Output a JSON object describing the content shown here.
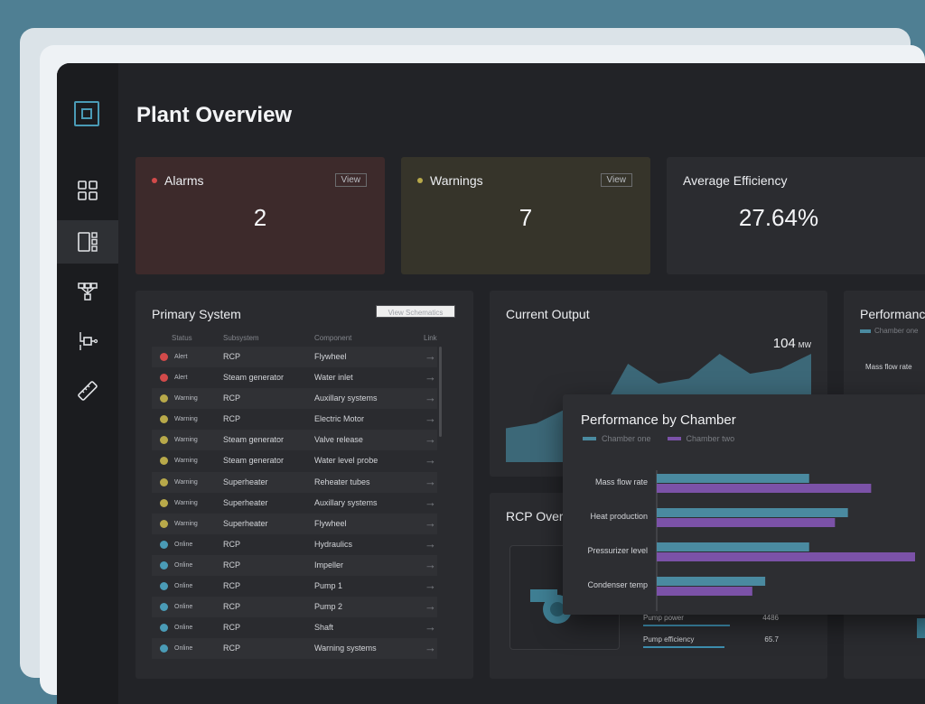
{
  "page": {
    "title": "Plant Overview"
  },
  "sidebar": {
    "items": [
      {
        "name": "dashboard-icon"
      },
      {
        "name": "layout-icon",
        "active": true
      },
      {
        "name": "network-icon"
      },
      {
        "name": "component-icon"
      },
      {
        "name": "ruler-icon"
      }
    ]
  },
  "cards": {
    "alarms": {
      "label": "Alarms",
      "value": "2",
      "view": "View",
      "dot_color": "#d24a4a"
    },
    "warnings": {
      "label": "Warnings",
      "value": "7",
      "view": "View",
      "dot_color": "#b8a94a"
    },
    "efficiency": {
      "label": "Average Efficiency",
      "value": "27.64%"
    }
  },
  "primary": {
    "title": "Primary System",
    "schematics_button": "View Schematics",
    "headers": {
      "status": "Status",
      "subsystem": "Subsystem",
      "component": "Component",
      "link": "Link"
    },
    "rows": [
      {
        "status": "Alert",
        "color": "#d24a4a",
        "subsystem": "RCP",
        "component": "Flywheel"
      },
      {
        "status": "Alert",
        "color": "#d24a4a",
        "subsystem": "Steam generator",
        "component": "Water inlet"
      },
      {
        "status": "Warning",
        "color": "#b8a94a",
        "subsystem": "RCP",
        "component": "Auxillary systems"
      },
      {
        "status": "Warning",
        "color": "#b8a94a",
        "subsystem": "RCP",
        "component": "Electric Motor"
      },
      {
        "status": "Warning",
        "color": "#b8a94a",
        "subsystem": "Steam generator",
        "component": "Valve release"
      },
      {
        "status": "Warning",
        "color": "#b8a94a",
        "subsystem": "Steam generator",
        "component": "Water level probe"
      },
      {
        "status": "Warning",
        "color": "#b8a94a",
        "subsystem": "Superheater",
        "component": "Reheater tubes"
      },
      {
        "status": "Warning",
        "color": "#b8a94a",
        "subsystem": "Superheater",
        "component": "Auxillary systems"
      },
      {
        "status": "Warning",
        "color": "#b8a94a",
        "subsystem": "Superheater",
        "component": "Flywheel"
      },
      {
        "status": "Online",
        "color": "#4a9bb6",
        "subsystem": "RCP",
        "component": "Hydraulics"
      },
      {
        "status": "Online",
        "color": "#4a9bb6",
        "subsystem": "RCP",
        "component": "Impeller"
      },
      {
        "status": "Online",
        "color": "#4a9bb6",
        "subsystem": "RCP",
        "component": "Pump 1"
      },
      {
        "status": "Online",
        "color": "#4a9bb6",
        "subsystem": "RCP",
        "component": "Pump 2"
      },
      {
        "status": "Online",
        "color": "#4a9bb6",
        "subsystem": "RCP",
        "component": "Shaft"
      },
      {
        "status": "Online",
        "color": "#4a9bb6",
        "subsystem": "RCP",
        "component": "Warning systems"
      }
    ],
    "link_arrow": "→"
  },
  "output": {
    "title": "Current Output",
    "value": "104",
    "unit": "MW",
    "area_values": [
      0.25,
      0.3,
      0.45,
      0.35,
      0.9,
      0.7,
      0.75,
      1.0,
      0.8,
      0.85,
      1.0
    ]
  },
  "rcp": {
    "title": "RCP Overv",
    "metrics": [
      {
        "label": "Pump power",
        "value": "4486",
        "level": 0.8
      },
      {
        "label": "Pump efficiency",
        "value": "65.7",
        "level": 0.75
      }
    ]
  },
  "perf_bg": {
    "title": "Performanc",
    "legend": "Chamber one",
    "first_label": "Mass flow rate"
  },
  "chart_data": {
    "type": "bar",
    "title": "Performance by Chamber",
    "categories": [
      "Mass flow rate",
      "Heat production",
      "Pressurizer level",
      "Condenser temp"
    ],
    "series": [
      {
        "name": "Chamber one",
        "color": "#4a8aa0",
        "values": [
          0.59,
          0.74,
          0.59,
          0.42
        ]
      },
      {
        "name": "Chamber two",
        "color": "#7b52a8",
        "values": [
          0.83,
          0.69,
          1.0,
          0.37
        ]
      }
    ],
    "xlim": [
      0,
      1
    ]
  }
}
